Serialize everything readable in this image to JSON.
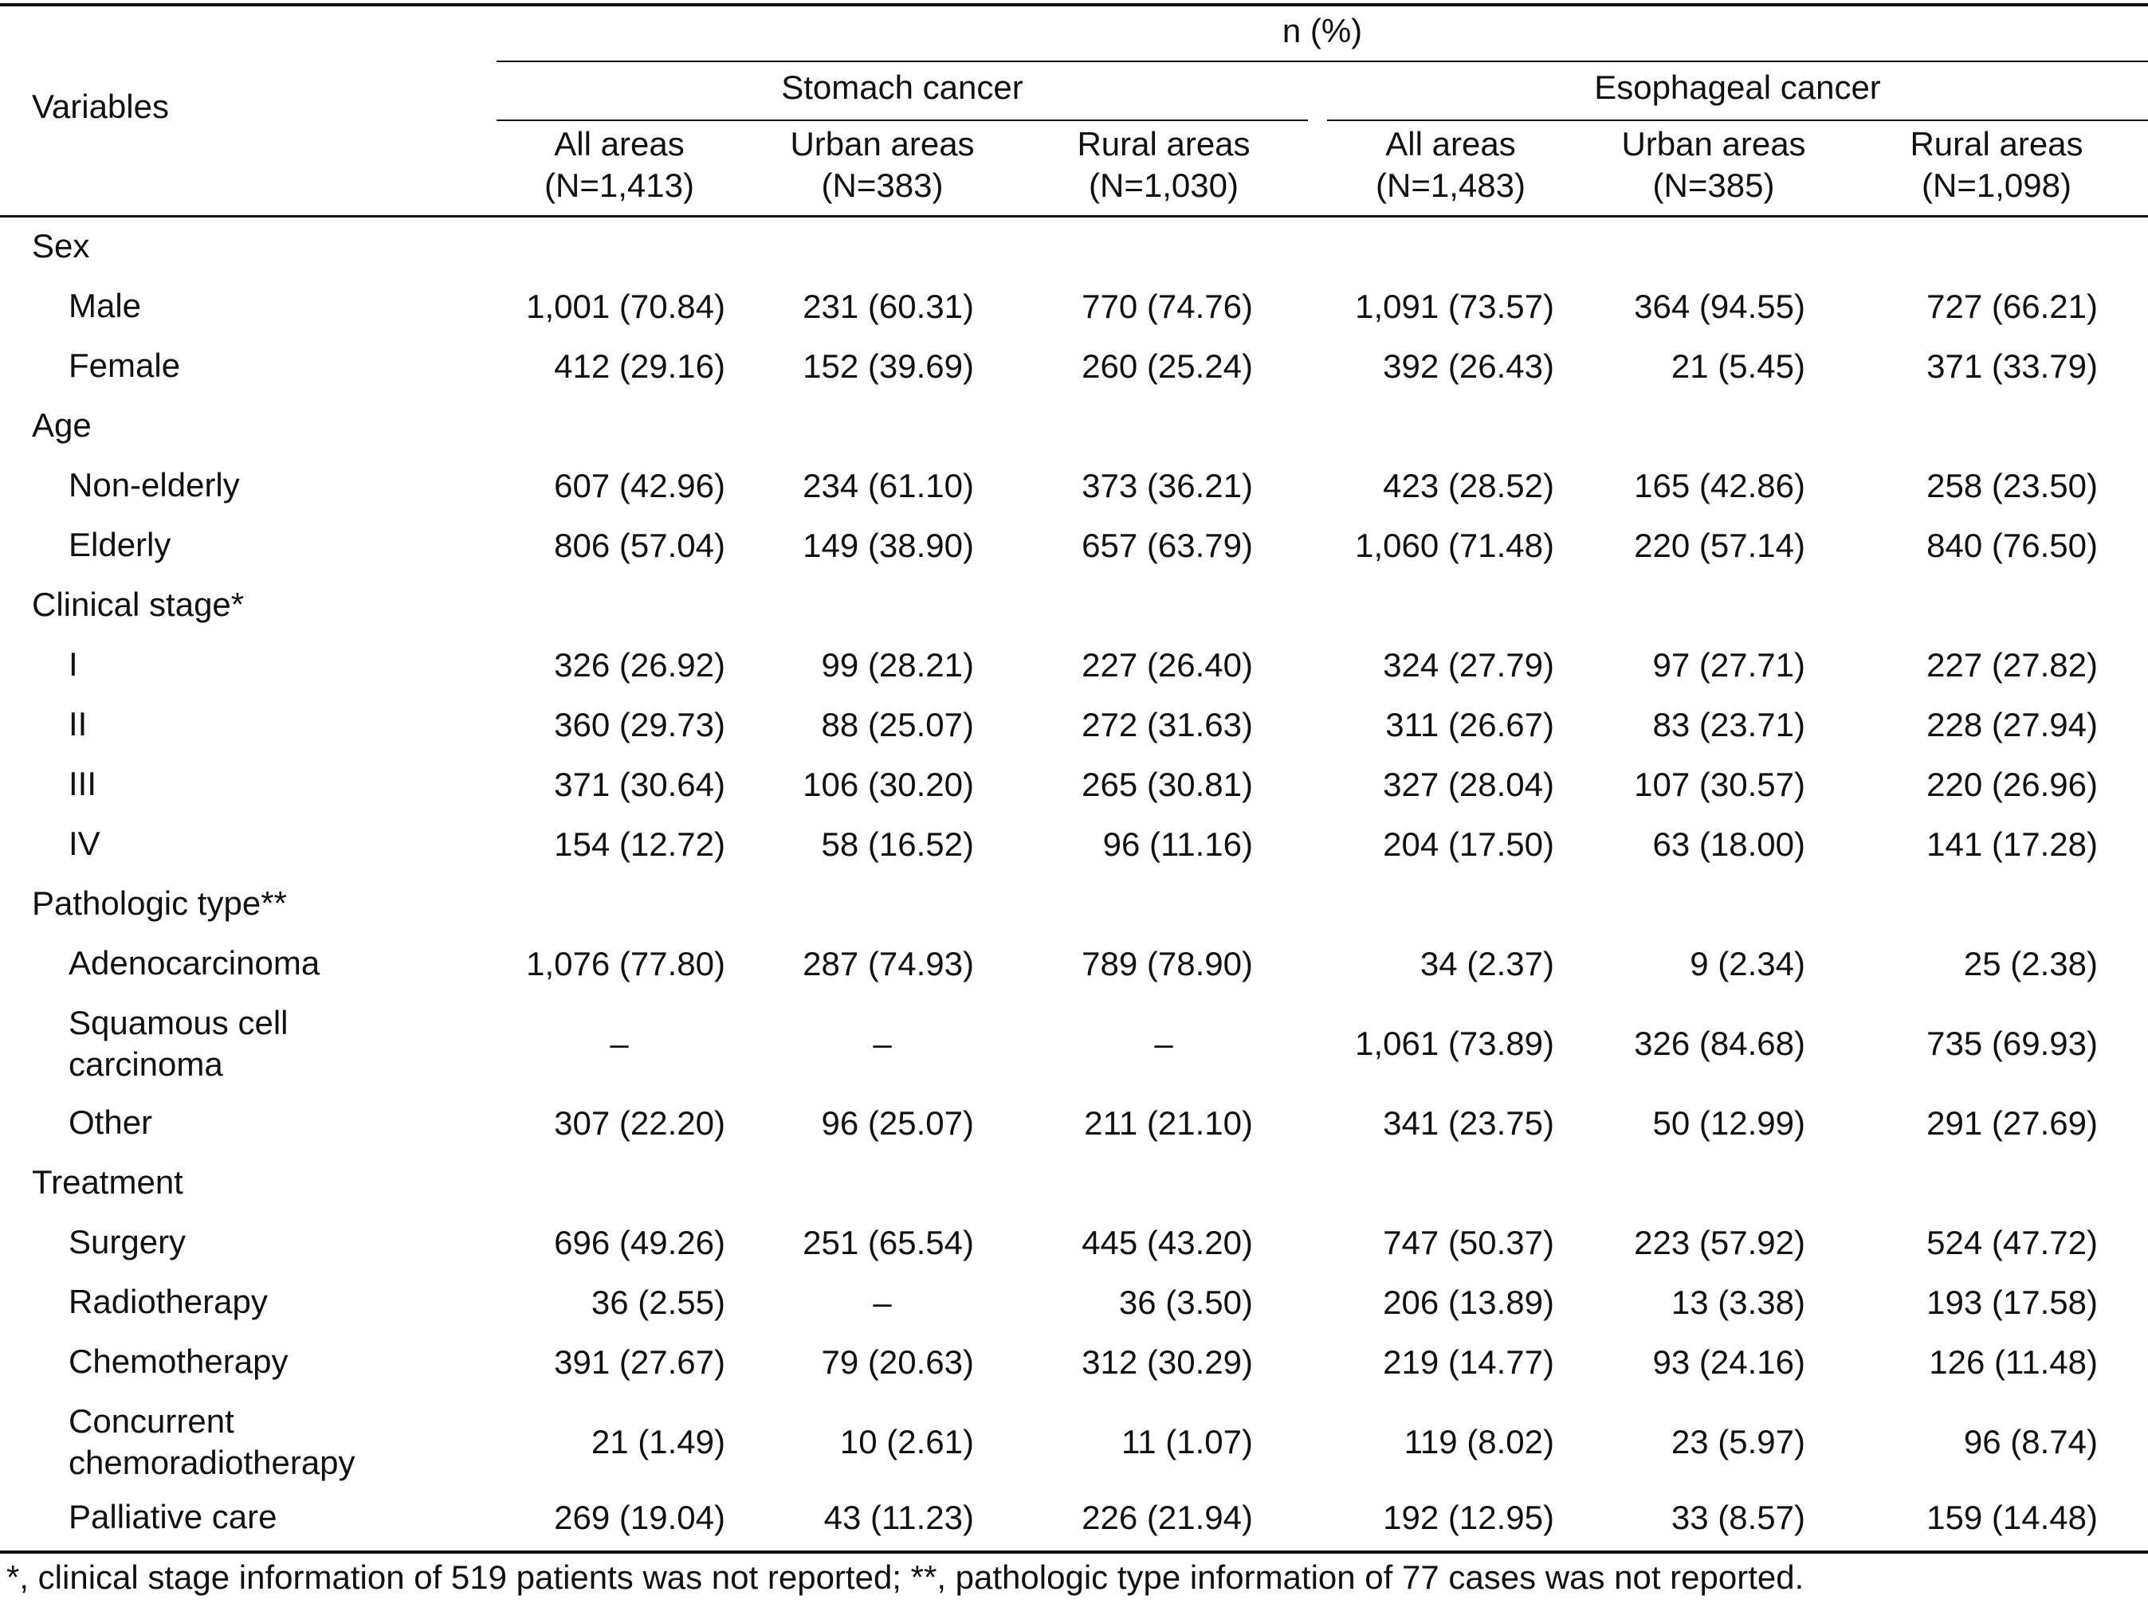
{
  "header": {
    "variables_label": "Variables",
    "measure_label": "n (%)",
    "groups": [
      "Stomach cancer",
      "Esophageal cancer"
    ],
    "columns": [
      {
        "line1": "All areas",
        "line2": "(N=1,413)"
      },
      {
        "line1": "Urban areas",
        "line2": "(N=383)"
      },
      {
        "line1": "Rural areas",
        "line2": "(N=1,030)"
      },
      {
        "line1": "All areas",
        "line2": "(N=1,483)"
      },
      {
        "line1": "Urban areas",
        "line2": "(N=385)"
      },
      {
        "line1": "Rural areas",
        "line2": "(N=1,098)"
      }
    ]
  },
  "rows": [
    {
      "label": "Sex",
      "type": "section",
      "cells": []
    },
    {
      "label": "Male",
      "type": "data",
      "cells": [
        "1,001 (70.84)",
        "231 (60.31)",
        "770 (74.76)",
        "1,091 (73.57)",
        "364 (94.55)",
        "727 (66.21)"
      ]
    },
    {
      "label": "Female",
      "type": "data",
      "cells": [
        "412 (29.16)",
        "152 (39.69)",
        "260 (25.24)",
        "392 (26.43)",
        "21 (5.45)",
        "371 (33.79)"
      ]
    },
    {
      "label": "Age",
      "type": "section",
      "cells": []
    },
    {
      "label": "Non-elderly",
      "type": "data",
      "cells": [
        "607 (42.96)",
        "234 (61.10)",
        "373 (36.21)",
        "423 (28.52)",
        "165 (42.86)",
        "258 (23.50)"
      ]
    },
    {
      "label": "Elderly",
      "type": "data",
      "cells": [
        "806 (57.04)",
        "149 (38.90)",
        "657 (63.79)",
        "1,060 (71.48)",
        "220 (57.14)",
        "840 (76.50)"
      ]
    },
    {
      "label": "Clinical stage*",
      "type": "section",
      "cells": []
    },
    {
      "label": "I",
      "type": "data",
      "cells": [
        "326 (26.92)",
        "99 (28.21)",
        "227 (26.40)",
        "324 (27.79)",
        "97 (27.71)",
        "227 (27.82)"
      ]
    },
    {
      "label": "II",
      "type": "data",
      "cells": [
        "360 (29.73)",
        "88 (25.07)",
        "272 (31.63)",
        "311 (26.67)",
        "83 (23.71)",
        "228 (27.94)"
      ]
    },
    {
      "label": "III",
      "type": "data",
      "cells": [
        "371 (30.64)",
        "106 (30.20)",
        "265 (30.81)",
        "327 (28.04)",
        "107 (30.57)",
        "220 (26.96)"
      ]
    },
    {
      "label": "IV",
      "type": "data",
      "cells": [
        "154 (12.72)",
        "58 (16.52)",
        "96 (11.16)",
        "204 (17.50)",
        "63 (18.00)",
        "141 (17.28)"
      ]
    },
    {
      "label": "Pathologic type**",
      "type": "section",
      "cells": []
    },
    {
      "label": "Adenocarcinoma",
      "type": "data",
      "cells": [
        "1,076 (77.80)",
        "287 (74.93)",
        "789 (78.90)",
        "34 (2.37)",
        "9 (2.34)",
        "25 (2.38)"
      ]
    },
    {
      "label": "Squamous cell\ncarcinoma",
      "type": "data",
      "cells": [
        "–",
        "–",
        "–",
        "1,061 (73.89)",
        "326 (84.68)",
        "735 (69.93)"
      ]
    },
    {
      "label": "Other",
      "type": "data",
      "cells": [
        "307 (22.20)",
        "96 (25.07)",
        "211 (21.10)",
        "341 (23.75)",
        "50 (12.99)",
        "291 (27.69)"
      ]
    },
    {
      "label": "Treatment",
      "type": "section",
      "cells": []
    },
    {
      "label": "Surgery",
      "type": "data",
      "cells": [
        "696 (49.26)",
        "251 (65.54)",
        "445 (43.20)",
        "747 (50.37)",
        "223 (57.92)",
        "524 (47.72)"
      ]
    },
    {
      "label": "Radiotherapy",
      "type": "data",
      "cells": [
        "36 (2.55)",
        "–",
        "36 (3.50)",
        "206 (13.89)",
        "13 (3.38)",
        "193 (17.58)"
      ]
    },
    {
      "label": "Chemotherapy",
      "type": "data",
      "cells": [
        "391 (27.67)",
        "79 (20.63)",
        "312 (30.29)",
        "219 (14.77)",
        "93 (24.16)",
        "126 (11.48)"
      ]
    },
    {
      "label": "Concurrent\nchemoradiotherapy",
      "type": "data",
      "cells": [
        "21 (1.49)",
        "10 (2.61)",
        "11 (1.07)",
        "119 (8.02)",
        "23 (5.97)",
        "96 (8.74)"
      ]
    },
    {
      "label": "Palliative care",
      "type": "data",
      "cells": [
        "269 (19.04)",
        "43 (11.23)",
        "226 (21.94)",
        "192 (12.95)",
        "33 (8.57)",
        "159 (14.48)"
      ]
    }
  ],
  "footnote": "*, clinical stage information of 519 patients was not reported; **, pathologic type information of 77 cases was not reported."
}
